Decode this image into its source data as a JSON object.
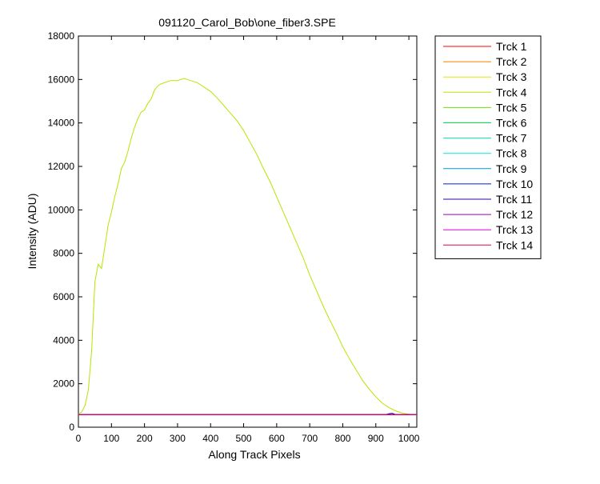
{
  "chart_data": {
    "type": "line",
    "title": "091120_Carol_Bob\\one_fiber3.SPE",
    "xlabel": "Along Track Pixels",
    "ylabel": "Intensity (ADU)",
    "xlim": [
      0,
      1024
    ],
    "ylim": [
      0,
      18000
    ],
    "xticks": [
      0,
      100,
      200,
      300,
      400,
      500,
      600,
      700,
      800,
      900,
      1000
    ],
    "yticks": [
      0,
      2000,
      4000,
      6000,
      8000,
      10000,
      12000,
      14000,
      16000,
      18000
    ],
    "grid": false,
    "legend_position": "outside-right",
    "baseline_value": 580,
    "series": [
      {
        "name": "Trck 1",
        "color": "#ff0000",
        "x": [
          0,
          1024
        ],
        "y": [
          580,
          580
        ]
      },
      {
        "name": "Trck 2",
        "color": "#ff7b00",
        "x": [
          0,
          1024
        ],
        "y": [
          580,
          580
        ]
      },
      {
        "name": "Trck 3",
        "color": "#e6e600",
        "x": [
          0,
          1024
        ],
        "y": [
          580,
          580
        ]
      },
      {
        "name": "Trck 4",
        "color": "#b5e600",
        "x": [
          0,
          10,
          20,
          30,
          40,
          50,
          60,
          70,
          80,
          90,
          100,
          110,
          120,
          130,
          140,
          150,
          160,
          170,
          180,
          190,
          200,
          210,
          220,
          230,
          240,
          250,
          260,
          270,
          280,
          290,
          300,
          310,
          320,
          330,
          340,
          350,
          360,
          370,
          380,
          390,
          400,
          420,
          440,
          460,
          480,
          500,
          520,
          540,
          560,
          580,
          600,
          620,
          640,
          660,
          680,
          700,
          720,
          740,
          760,
          780,
          800,
          820,
          840,
          860,
          880,
          900,
          920,
          940,
          960,
          980,
          1000,
          1010,
          1020
        ],
        "y": [
          600,
          700,
          1000,
          1700,
          3500,
          6700,
          7500,
          7300,
          8300,
          9300,
          9900,
          10600,
          11200,
          11900,
          12200,
          12700,
          13300,
          13800,
          14200,
          14500,
          14600,
          14900,
          15100,
          15500,
          15700,
          15800,
          15850,
          15900,
          15950,
          15950,
          15950,
          16000,
          16050,
          16000,
          15950,
          15900,
          15850,
          15750,
          15650,
          15550,
          15450,
          15150,
          14800,
          14450,
          14100,
          13650,
          13100,
          12550,
          11900,
          11300,
          10600,
          9900,
          9200,
          8500,
          7800,
          7000,
          6300,
          5600,
          4950,
          4350,
          3700,
          3150,
          2650,
          2150,
          1750,
          1400,
          1100,
          900,
          750,
          650,
          600,
          590,
          590
        ]
      },
      {
        "name": "Trck 5",
        "color": "#66e600",
        "x": [
          0,
          1024
        ],
        "y": [
          580,
          580
        ]
      },
      {
        "name": "Trck 6",
        "color": "#00e64c",
        "x": [
          0,
          1024
        ],
        "y": [
          580,
          580
        ]
      },
      {
        "name": "Trck 7",
        "color": "#00e6b0",
        "x": [
          0,
          1024
        ],
        "y": [
          580,
          580
        ]
      },
      {
        "name": "Trck 8",
        "color": "#00e6e6",
        "x": [
          0,
          1024
        ],
        "y": [
          580,
          580
        ]
      },
      {
        "name": "Trck 9",
        "color": "#0099cc",
        "x": [
          0,
          1024
        ],
        "y": [
          580,
          580
        ]
      },
      {
        "name": "Trck 10",
        "color": "#0022cc",
        "x": [
          0,
          1024
        ],
        "y": [
          580,
          580
        ]
      },
      {
        "name": "Trck 11",
        "color": "#3300aa",
        "x": [
          0,
          930,
          940,
          950,
          960,
          1024
        ],
        "y": [
          580,
          580,
          620,
          640,
          580,
          580
        ]
      },
      {
        "name": "Trck 12",
        "color": "#9900cc",
        "x": [
          0,
          1024
        ],
        "y": [
          580,
          580
        ]
      },
      {
        "name": "Trck 13",
        "color": "#e600e6",
        "x": [
          0,
          1024
        ],
        "y": [
          580,
          580
        ]
      },
      {
        "name": "Trck 14",
        "color": "#e6004c",
        "x": [
          0,
          1024
        ],
        "y": [
          580,
          580
        ]
      }
    ]
  }
}
